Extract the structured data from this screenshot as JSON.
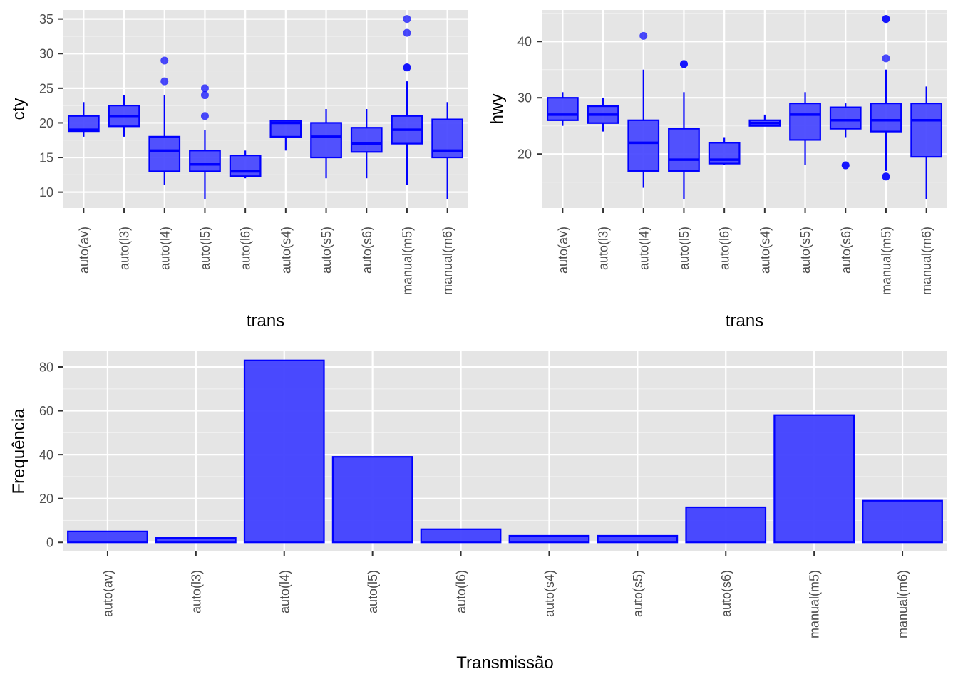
{
  "theme": {
    "panel_bg": "#e5e5e5",
    "grid_major": "#ffffff",
    "grid_minor": "#f2f2f2",
    "tick_color": "#4d4d4d",
    "stroke": "#0000ff",
    "fill": "#4040ff"
  },
  "chart_data": [
    {
      "type": "boxplot",
      "xlabel": "trans",
      "ylabel": "cty",
      "categories": [
        "auto(av)",
        "auto(l3)",
        "auto(l4)",
        "auto(l5)",
        "auto(l6)",
        "auto(s4)",
        "auto(s5)",
        "auto(s6)",
        "manual(m5)",
        "manual(m6)"
      ],
      "ylim": [
        7.7,
        36.3
      ],
      "yticks": [
        10,
        15,
        20,
        25,
        30,
        35
      ],
      "grid": true,
      "boxes": [
        {
          "low": 18,
          "q1": 18.8,
          "median": 19,
          "q3": 21,
          "high": 23,
          "outliers": []
        },
        {
          "low": 18,
          "q1": 19.5,
          "median": 21,
          "q3": 22.5,
          "high": 24,
          "outliers": []
        },
        {
          "low": 11,
          "q1": 13,
          "median": 16,
          "q3": 18,
          "high": 24,
          "outliers": [
            26,
            29
          ]
        },
        {
          "low": 9,
          "q1": 13,
          "median": 14,
          "q3": 16,
          "high": 19,
          "outliers": [
            21,
            24,
            25
          ]
        },
        {
          "low": 12,
          "q1": 12.3,
          "median": 13,
          "q3": 15.3,
          "high": 16,
          "outliers": []
        },
        {
          "low": 16,
          "q1": 18,
          "median": 20,
          "q3": 20.3,
          "high": 20.3,
          "outliers": []
        },
        {
          "low": 12,
          "q1": 15,
          "median": 18,
          "q3": 20,
          "high": 22,
          "outliers": []
        },
        {
          "low": 12,
          "q1": 15.8,
          "median": 17,
          "q3": 19.3,
          "high": 22,
          "outliers": []
        },
        {
          "low": 11,
          "q1": 17,
          "median": 19,
          "q3": 21,
          "high": 26,
          "outliers": [
            28,
            28,
            33,
            35
          ]
        },
        {
          "low": 9,
          "q1": 15,
          "median": 16,
          "q3": 20.5,
          "high": 23,
          "outliers": []
        }
      ]
    },
    {
      "type": "boxplot",
      "xlabel": "trans",
      "ylabel": "hwy",
      "categories": [
        "auto(av)",
        "auto(l3)",
        "auto(l4)",
        "auto(l5)",
        "auto(l6)",
        "auto(s4)",
        "auto(s5)",
        "auto(s6)",
        "manual(m5)",
        "manual(m6)"
      ],
      "ylim": [
        10.4,
        45.6
      ],
      "yticks": [
        20,
        30,
        40
      ],
      "grid": true,
      "boxes": [
        {
          "low": 25,
          "q1": 26,
          "median": 27,
          "q3": 30,
          "high": 31,
          "outliers": []
        },
        {
          "low": 24,
          "q1": 25.5,
          "median": 27,
          "q3": 28.5,
          "high": 30,
          "outliers": []
        },
        {
          "low": 14,
          "q1": 17,
          "median": 22,
          "q3": 26,
          "high": 35,
          "outliers": [
            41
          ]
        },
        {
          "low": 12,
          "q1": 17,
          "median": 19,
          "q3": 24.5,
          "high": 31,
          "outliers": [
            36,
            36
          ]
        },
        {
          "low": 18,
          "q1": 18.3,
          "median": 19,
          "q3": 22,
          "high": 23,
          "outliers": []
        },
        {
          "low": 25,
          "q1": 25,
          "median": 25.5,
          "q3": 26,
          "high": 27,
          "outliers": []
        },
        {
          "low": 18,
          "q1": 22.5,
          "median": 27,
          "q3": 29,
          "high": 31,
          "outliers": []
        },
        {
          "low": 23,
          "q1": 24.5,
          "median": 26,
          "q3": 28.3,
          "high": 29,
          "outliers": [
            18,
            18
          ]
        },
        {
          "low": 17,
          "q1": 24,
          "median": 26,
          "q3": 29,
          "high": 35,
          "outliers": [
            16,
            16,
            37,
            44,
            44
          ]
        },
        {
          "low": 12,
          "q1": 19.5,
          "median": 26,
          "q3": 29,
          "high": 32,
          "outliers": []
        }
      ]
    },
    {
      "type": "bar",
      "xlabel": "Transmissão",
      "ylabel": "Frequência",
      "categories": [
        "auto(av)",
        "auto(l3)",
        "auto(l4)",
        "auto(l5)",
        "auto(l6)",
        "auto(s4)",
        "auto(s5)",
        "auto(s6)",
        "manual(m5)",
        "manual(m6)"
      ],
      "values": [
        5,
        2,
        83,
        39,
        6,
        3,
        3,
        16,
        58,
        19
      ],
      "ylim": [
        -4.15,
        87.15
      ],
      "yticks": [
        0,
        20,
        40,
        60,
        80
      ],
      "grid": true
    }
  ]
}
